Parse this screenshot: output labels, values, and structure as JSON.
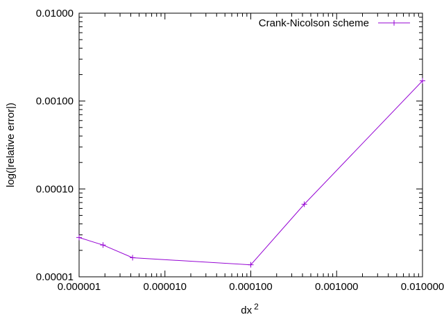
{
  "chart_data": {
    "type": "line",
    "title": "",
    "xlabel": "dx",
    "xlabel_superscript": "2",
    "ylabel": "log(|relative error|)",
    "x_scale": "log",
    "y_scale": "log",
    "xlim": [
      1e-06,
      0.01
    ],
    "ylim": [
      1e-05,
      0.01
    ],
    "x_ticks": [
      1e-06,
      1e-05,
      0.0001,
      0.001,
      0.01
    ],
    "x_tick_labels": [
      "0.000001",
      "0.000010",
      "0.000100",
      "0.001000",
      "0.010000"
    ],
    "y_ticks": [
      1e-05,
      0.0001,
      0.001,
      0.01
    ],
    "y_tick_labels": [
      "0.00001",
      "0.00010",
      "0.00100",
      "0.01000"
    ],
    "grid": false,
    "legend_position": "top-right",
    "series": [
      {
        "name": "Crank-Nicolson scheme",
        "color": "#9400d3",
        "marker": "plus",
        "x": [
          1e-06,
          1.9e-06,
          4.2e-06,
          0.0001,
          0.00042,
          0.01
        ],
        "y": [
          2.8e-05,
          2.3e-05,
          1.65e-05,
          1.37e-05,
          6.7e-05,
          0.0017
        ]
      }
    ]
  }
}
